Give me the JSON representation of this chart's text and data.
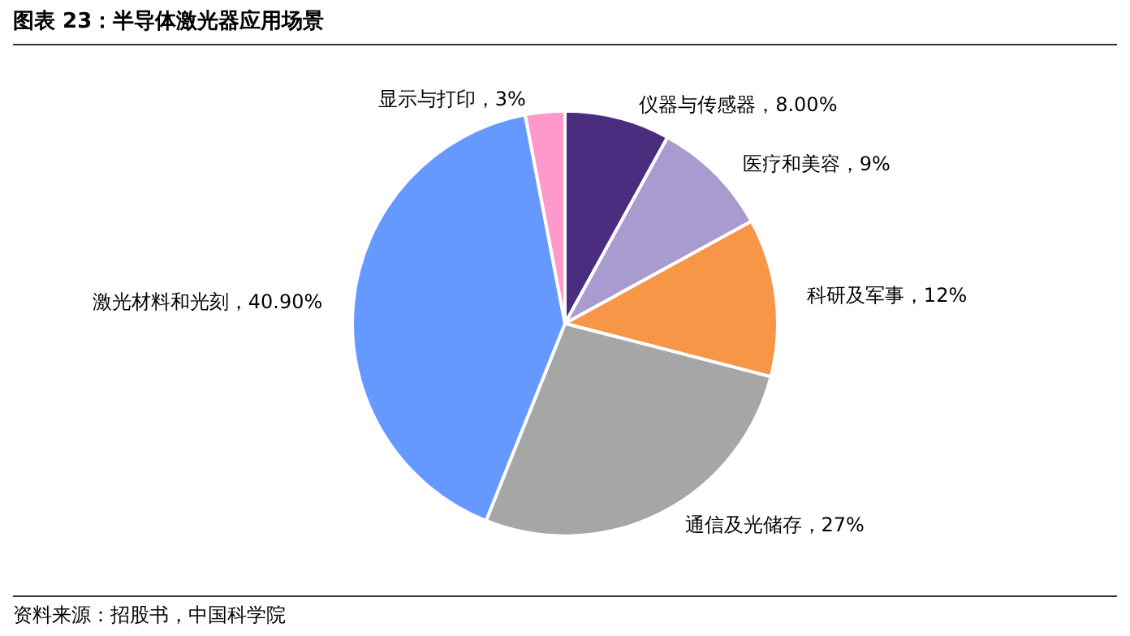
{
  "chart_data": {
    "type": "pie",
    "title": "图表 23：半导体激光器应用场景",
    "categories": [
      "仪器与传感器",
      "医疗和美容",
      "科研及军事",
      "通信及光储存",
      "激光材料和光刻",
      "显示与打印"
    ],
    "values": [
      8,
      9,
      12,
      27,
      40.9,
      3
    ],
    "value_labels": [
      "8.00%",
      "9%",
      "12%",
      "27%",
      "40.90%",
      "3%"
    ],
    "colors": [
      "#4b2d7f",
      "#a89bd0",
      "#f79646",
      "#a6a6a6",
      "#6699ff",
      "#ff99cc"
    ],
    "annotations": [
      "资料来源：招股书，中国科学院"
    ],
    "legend": false
  }
}
